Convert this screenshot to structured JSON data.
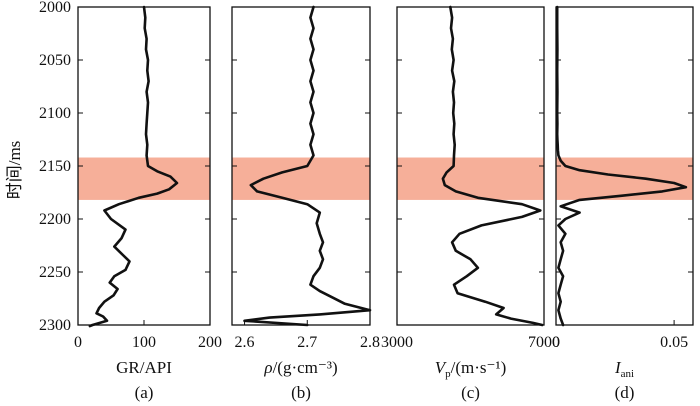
{
  "highlight_color": "#f4a187",
  "curve_color": "#111111",
  "y_label": "时间/ms",
  "chart_data": [
    {
      "type": "line",
      "panel": "(a)",
      "xlabel": "GR/API",
      "xlim": [
        0,
        200
      ],
      "xticks": [
        "0",
        "100",
        "200"
      ],
      "ylim": [
        2000,
        2300
      ],
      "y_inverted": true,
      "highlight_range": [
        2142,
        2182
      ],
      "series": [
        {
          "x": [
            100,
            102,
            101,
            104,
            103,
            106,
            105,
            107,
            104,
            106,
            105,
            104,
            103,
            105,
            104,
            106,
            120,
            140,
            150,
            138,
            120,
            92,
            62,
            40,
            50,
            72,
            66,
            55,
            68,
            78,
            72,
            55,
            48,
            60,
            54,
            40,
            32,
            28,
            38,
            44,
            22,
            18
          ],
          "y": [
            2000,
            2010,
            2020,
            2030,
            2040,
            2050,
            2060,
            2070,
            2080,
            2090,
            2100,
            2110,
            2120,
            2130,
            2140,
            2150,
            2155,
            2160,
            2166,
            2172,
            2176,
            2180,
            2186,
            2192,
            2200,
            2210,
            2218,
            2226,
            2234,
            2240,
            2248,
            2254,
            2260,
            2266,
            2272,
            2278,
            2284,
            2289,
            2292,
            2296,
            2300,
            2301
          ]
        }
      ]
    },
    {
      "type": "line",
      "panel": "(b)",
      "xlabel": "ρ/(g·cm⁻³)",
      "xlim": [
        2.58,
        2.8
      ],
      "xticks": [
        "2.6",
        "2.7",
        "2.8"
      ],
      "ylim": [
        2000,
        2300
      ],
      "y_inverted": true,
      "highlight_range": [
        2142,
        2182
      ],
      "series": [
        {
          "x": [
            2.71,
            2.705,
            2.71,
            2.705,
            2.71,
            2.705,
            2.71,
            2.705,
            2.71,
            2.705,
            2.71,
            2.705,
            2.71,
            2.705,
            2.71,
            2.7,
            2.66,
            2.63,
            2.61,
            2.62,
            2.66,
            2.7,
            2.72,
            2.715,
            2.72,
            2.725,
            2.72,
            2.725,
            2.72,
            2.71,
            2.705,
            2.72,
            2.74,
            2.76,
            2.8,
            2.72,
            2.64,
            2.6,
            2.7
          ],
          "y": [
            2000,
            2010,
            2020,
            2030,
            2040,
            2050,
            2060,
            2070,
            2080,
            2090,
            2100,
            2110,
            2120,
            2130,
            2140,
            2150,
            2156,
            2162,
            2168,
            2174,
            2180,
            2186,
            2194,
            2204,
            2214,
            2222,
            2230,
            2238,
            2246,
            2254,
            2262,
            2268,
            2274,
            2280,
            2286,
            2290,
            2293,
            2296,
            2300
          ]
        }
      ]
    },
    {
      "type": "line",
      "panel": "(c)",
      "xlabel": "Vp/(m·s⁻¹)",
      "xlim": [
        3000,
        7000
      ],
      "xticks": [
        "3000",
        "7000"
      ],
      "ylim": [
        2000,
        2300
      ],
      "y_inverted": true,
      "highlight_range": [
        2142,
        2182
      ],
      "series": [
        {
          "x": [
            4450,
            4500,
            4470,
            4520,
            4490,
            4540,
            4500,
            4560,
            4520,
            4550,
            4530,
            4560,
            4540,
            4570,
            4550,
            4540,
            4350,
            4250,
            4300,
            4600,
            5200,
            6400,
            6900,
            6400,
            5300,
            4700,
            4500,
            4600,
            5000,
            5200,
            4900,
            4550,
            4650,
            5400,
            5900,
            5700,
            6100,
            6700,
            6950
          ],
          "y": [
            2000,
            2010,
            2020,
            2030,
            2040,
            2050,
            2060,
            2070,
            2080,
            2090,
            2100,
            2110,
            2120,
            2130,
            2140,
            2150,
            2156,
            2162,
            2168,
            2174,
            2180,
            2186,
            2192,
            2198,
            2206,
            2214,
            2222,
            2230,
            2238,
            2246,
            2254,
            2262,
            2270,
            2278,
            2284,
            2290,
            2294,
            2298,
            2300
          ]
        }
      ]
    },
    {
      "type": "line",
      "panel": "(d)",
      "xlabel": "Iani",
      "xlim": [
        0,
        0.058
      ],
      "xticks": [
        "0",
        "0.05"
      ],
      "ylim": [
        2000,
        2300
      ],
      "y_inverted": true,
      "highlight_range": [
        2142,
        2182
      ],
      "series": [
        {
          "x": [
            0.0005,
            0.0005,
            0.0006,
            0.0005,
            0.0006,
            0.0005,
            0.0006,
            0.0005,
            0.0006,
            0.0007,
            0.0008,
            0.001,
            0.002,
            0.004,
            0.01,
            0.022,
            0.038,
            0.05,
            0.055,
            0.045,
            0.028,
            0.01,
            0.002,
            0.01,
            0.004,
            0.001,
            0.004,
            0.002,
            0.003,
            0.002,
            0.001,
            0.003,
            0.002,
            0.001,
            0.002,
            0.001,
            0.002,
            0.003
          ],
          "y": [
            2000,
            2020,
            2040,
            2060,
            2080,
            2100,
            2110,
            2120,
            2125,
            2130,
            2135,
            2140,
            2145,
            2150,
            2154,
            2158,
            2162,
            2166,
            2170,
            2174,
            2178,
            2182,
            2188,
            2194,
            2200,
            2206,
            2214,
            2222,
            2230,
            2238,
            2246,
            2254,
            2262,
            2270,
            2278,
            2286,
            2294,
            2300
          ]
        }
      ]
    }
  ]
}
